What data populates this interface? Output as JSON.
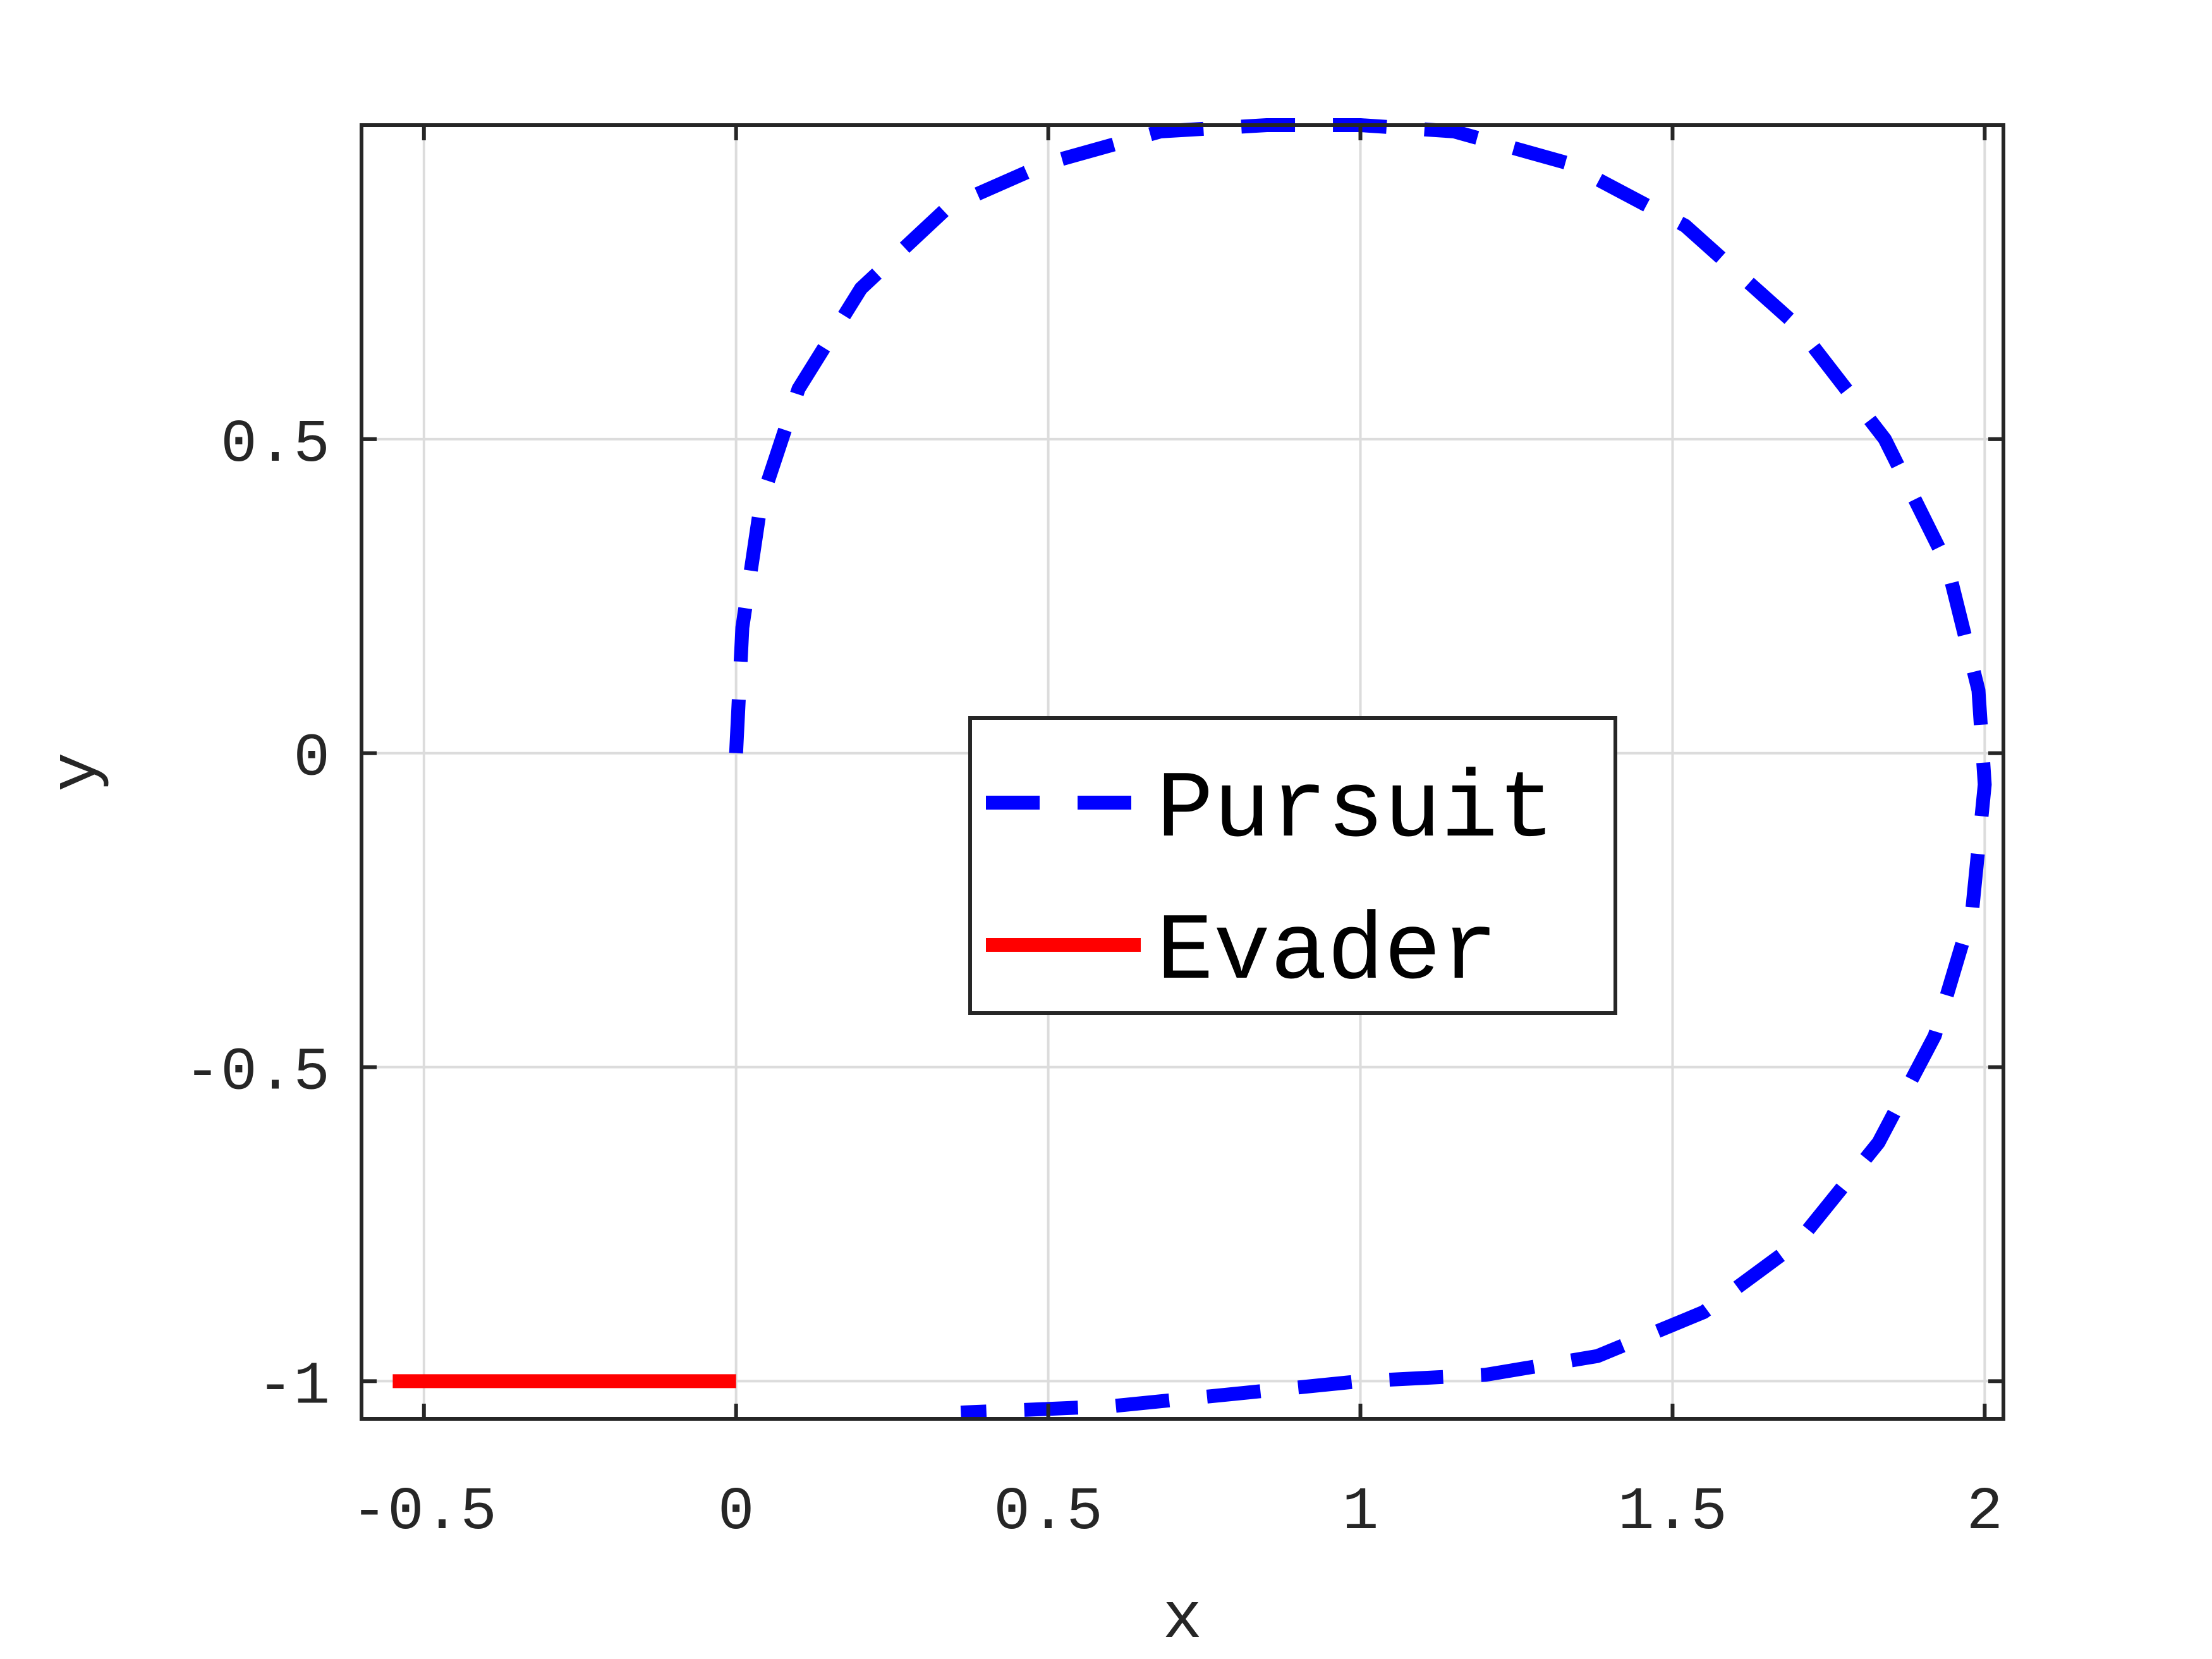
{
  "chart_data": {
    "type": "line",
    "title": "",
    "xlabel": "x",
    "ylabel": "y",
    "xlim": [
      -0.6,
      2.03
    ],
    "ylim": [
      -1.06,
      1.0
    ],
    "xticks": [
      -0.5,
      0,
      0.5,
      1,
      1.5,
      2
    ],
    "xtick_labels": [
      "-0.5",
      "0",
      "0.5",
      "1",
      "1.5",
      "2"
    ],
    "yticks": [
      -1,
      -0.5,
      0,
      0.5
    ],
    "ytick_labels": [
      "-1",
      "-0.5",
      "0",
      "0.5"
    ],
    "grid": true,
    "legend": {
      "position": "center",
      "entries": [
        "Pursuit",
        "Evader"
      ]
    },
    "series": [
      {
        "name": "Pursuit",
        "style": "dashed",
        "color": "#0000ff",
        "x": [
          0.0,
          0.01,
          0.04,
          0.1,
          0.2,
          0.34,
          0.5,
          0.68,
          0.85,
          1.0,
          1.15,
          1.33,
          1.52,
          1.7,
          1.84,
          1.94,
          1.99,
          2.0,
          1.98,
          1.92,
          1.83,
          1.7,
          1.55,
          1.38,
          1.2,
          1.0,
          0.8,
          0.6,
          0.36
        ],
        "y": [
          0.0,
          0.2,
          0.4,
          0.58,
          0.74,
          0.87,
          0.94,
          0.99,
          1.0,
          1.0,
          0.99,
          0.94,
          0.84,
          0.68,
          0.5,
          0.3,
          0.1,
          -0.05,
          -0.25,
          -0.45,
          -0.62,
          -0.78,
          -0.89,
          -0.96,
          -0.99,
          -1.0,
          -1.02,
          -1.04,
          -1.05
        ]
      },
      {
        "name": "Evader",
        "style": "solid",
        "color": "#ff0000",
        "x": [
          -0.55,
          0.0
        ],
        "y": [
          -1.0,
          -1.0
        ]
      }
    ]
  }
}
